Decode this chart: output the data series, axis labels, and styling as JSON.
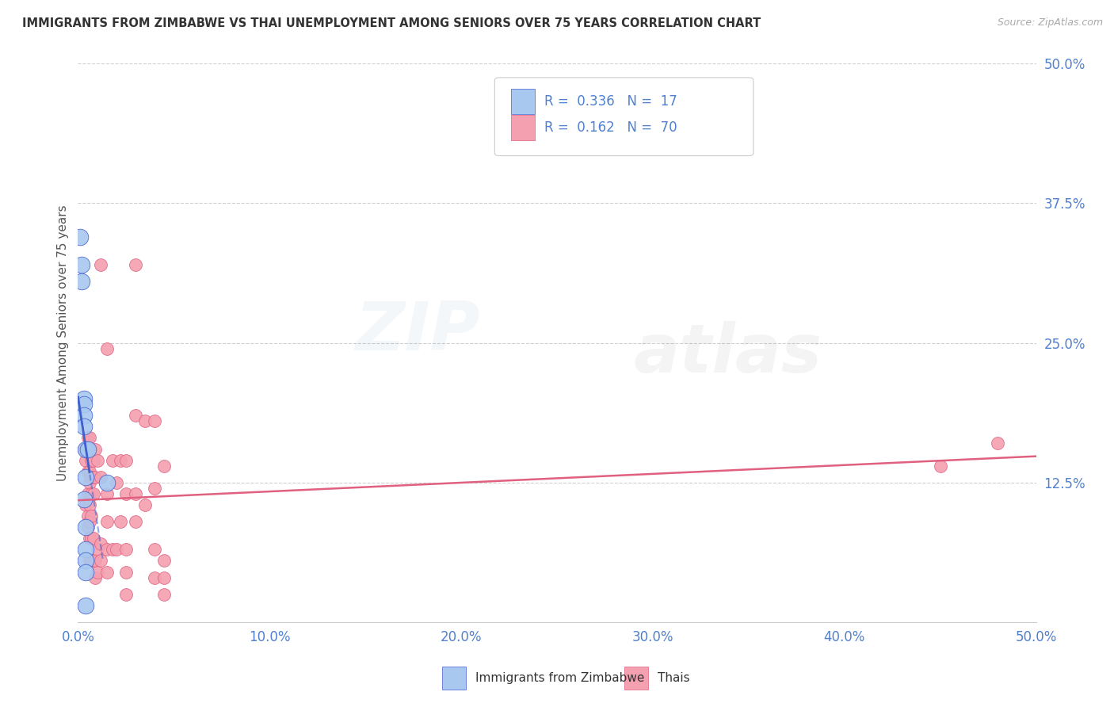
{
  "title": "IMMIGRANTS FROM ZIMBABWE VS THAI UNEMPLOYMENT AMONG SENIORS OVER 75 YEARS CORRELATION CHART",
  "source": "Source: ZipAtlas.com",
  "ylabel": "Unemployment Among Seniors over 75 years",
  "legend_label_blue": "Immigrants from Zimbabwe",
  "legend_label_pink": "Thais",
  "R_blue": 0.336,
  "N_blue": 17,
  "R_pink": 0.162,
  "N_pink": 70,
  "xlim": [
    0.0,
    0.5
  ],
  "ylim": [
    0.0,
    0.5
  ],
  "xticks": [
    0.0,
    0.1,
    0.2,
    0.3,
    0.4,
    0.5
  ],
  "xtick_labels": [
    "0.0%",
    "10.0%",
    "20.0%",
    "30.0%",
    "40.0%",
    "50.0%"
  ],
  "yticks_right": [
    0.125,
    0.25,
    0.375,
    0.5
  ],
  "ytick_labels_right": [
    "12.5%",
    "25.0%",
    "37.5%",
    "50.0%"
  ],
  "color_blue": "#a8c8f0",
  "color_pink": "#f4a0b0",
  "trend_blue": "#4060d0",
  "trend_pink": "#e06080",
  "blue_points": [
    [
      0.001,
      0.345
    ],
    [
      0.002,
      0.32
    ],
    [
      0.002,
      0.305
    ],
    [
      0.003,
      0.2
    ],
    [
      0.003,
      0.195
    ],
    [
      0.003,
      0.185
    ],
    [
      0.003,
      0.175
    ],
    [
      0.003,
      0.11
    ],
    [
      0.004,
      0.155
    ],
    [
      0.004,
      0.13
    ],
    [
      0.004,
      0.085
    ],
    [
      0.004,
      0.065
    ],
    [
      0.004,
      0.055
    ],
    [
      0.004,
      0.045
    ],
    [
      0.004,
      0.015
    ],
    [
      0.005,
      0.155
    ],
    [
      0.015,
      0.125
    ]
  ],
  "pink_points": [
    [
      0.003,
      0.155
    ],
    [
      0.004,
      0.145
    ],
    [
      0.004,
      0.105
    ],
    [
      0.005,
      0.165
    ],
    [
      0.005,
      0.135
    ],
    [
      0.005,
      0.115
    ],
    [
      0.005,
      0.095
    ],
    [
      0.005,
      0.085
    ],
    [
      0.006,
      0.165
    ],
    [
      0.006,
      0.155
    ],
    [
      0.006,
      0.135
    ],
    [
      0.006,
      0.125
    ],
    [
      0.006,
      0.105
    ],
    [
      0.006,
      0.09
    ],
    [
      0.006,
      0.075
    ],
    [
      0.006,
      0.055
    ],
    [
      0.007,
      0.145
    ],
    [
      0.007,
      0.13
    ],
    [
      0.007,
      0.115
    ],
    [
      0.007,
      0.095
    ],
    [
      0.007,
      0.075
    ],
    [
      0.007,
      0.055
    ],
    [
      0.008,
      0.145
    ],
    [
      0.008,
      0.13
    ],
    [
      0.008,
      0.115
    ],
    [
      0.008,
      0.075
    ],
    [
      0.008,
      0.055
    ],
    [
      0.009,
      0.155
    ],
    [
      0.009,
      0.13
    ],
    [
      0.009,
      0.055
    ],
    [
      0.009,
      0.04
    ],
    [
      0.01,
      0.145
    ],
    [
      0.01,
      0.065
    ],
    [
      0.01,
      0.045
    ],
    [
      0.012,
      0.32
    ],
    [
      0.012,
      0.13
    ],
    [
      0.012,
      0.07
    ],
    [
      0.012,
      0.055
    ],
    [
      0.015,
      0.245
    ],
    [
      0.015,
      0.115
    ],
    [
      0.015,
      0.09
    ],
    [
      0.015,
      0.065
    ],
    [
      0.015,
      0.045
    ],
    [
      0.018,
      0.145
    ],
    [
      0.018,
      0.065
    ],
    [
      0.02,
      0.125
    ],
    [
      0.02,
      0.065
    ],
    [
      0.022,
      0.145
    ],
    [
      0.022,
      0.09
    ],
    [
      0.025,
      0.145
    ],
    [
      0.025,
      0.115
    ],
    [
      0.025,
      0.065
    ],
    [
      0.025,
      0.045
    ],
    [
      0.025,
      0.025
    ],
    [
      0.03,
      0.32
    ],
    [
      0.03,
      0.185
    ],
    [
      0.03,
      0.115
    ],
    [
      0.03,
      0.09
    ],
    [
      0.035,
      0.18
    ],
    [
      0.035,
      0.105
    ],
    [
      0.04,
      0.18
    ],
    [
      0.04,
      0.12
    ],
    [
      0.04,
      0.065
    ],
    [
      0.04,
      0.04
    ],
    [
      0.045,
      0.14
    ],
    [
      0.045,
      0.055
    ],
    [
      0.045,
      0.04
    ],
    [
      0.045,
      0.025
    ],
    [
      0.45,
      0.14
    ],
    [
      0.48,
      0.16
    ]
  ],
  "blue_size_base": 220,
  "pink_size_base": 130,
  "watermark_zip": "ZIP",
  "watermark_atlas": "atlas",
  "watermark_alpha": 0.07,
  "watermark_color_blue": "#6090c0",
  "watermark_color_gray": "#808080",
  "bg_color": "#ffffff",
  "tick_color": "#5080d0",
  "grid_color": "#d0d0d0",
  "title_color": "#333333",
  "source_color": "#aaaaaa",
  "label_color": "#555555"
}
